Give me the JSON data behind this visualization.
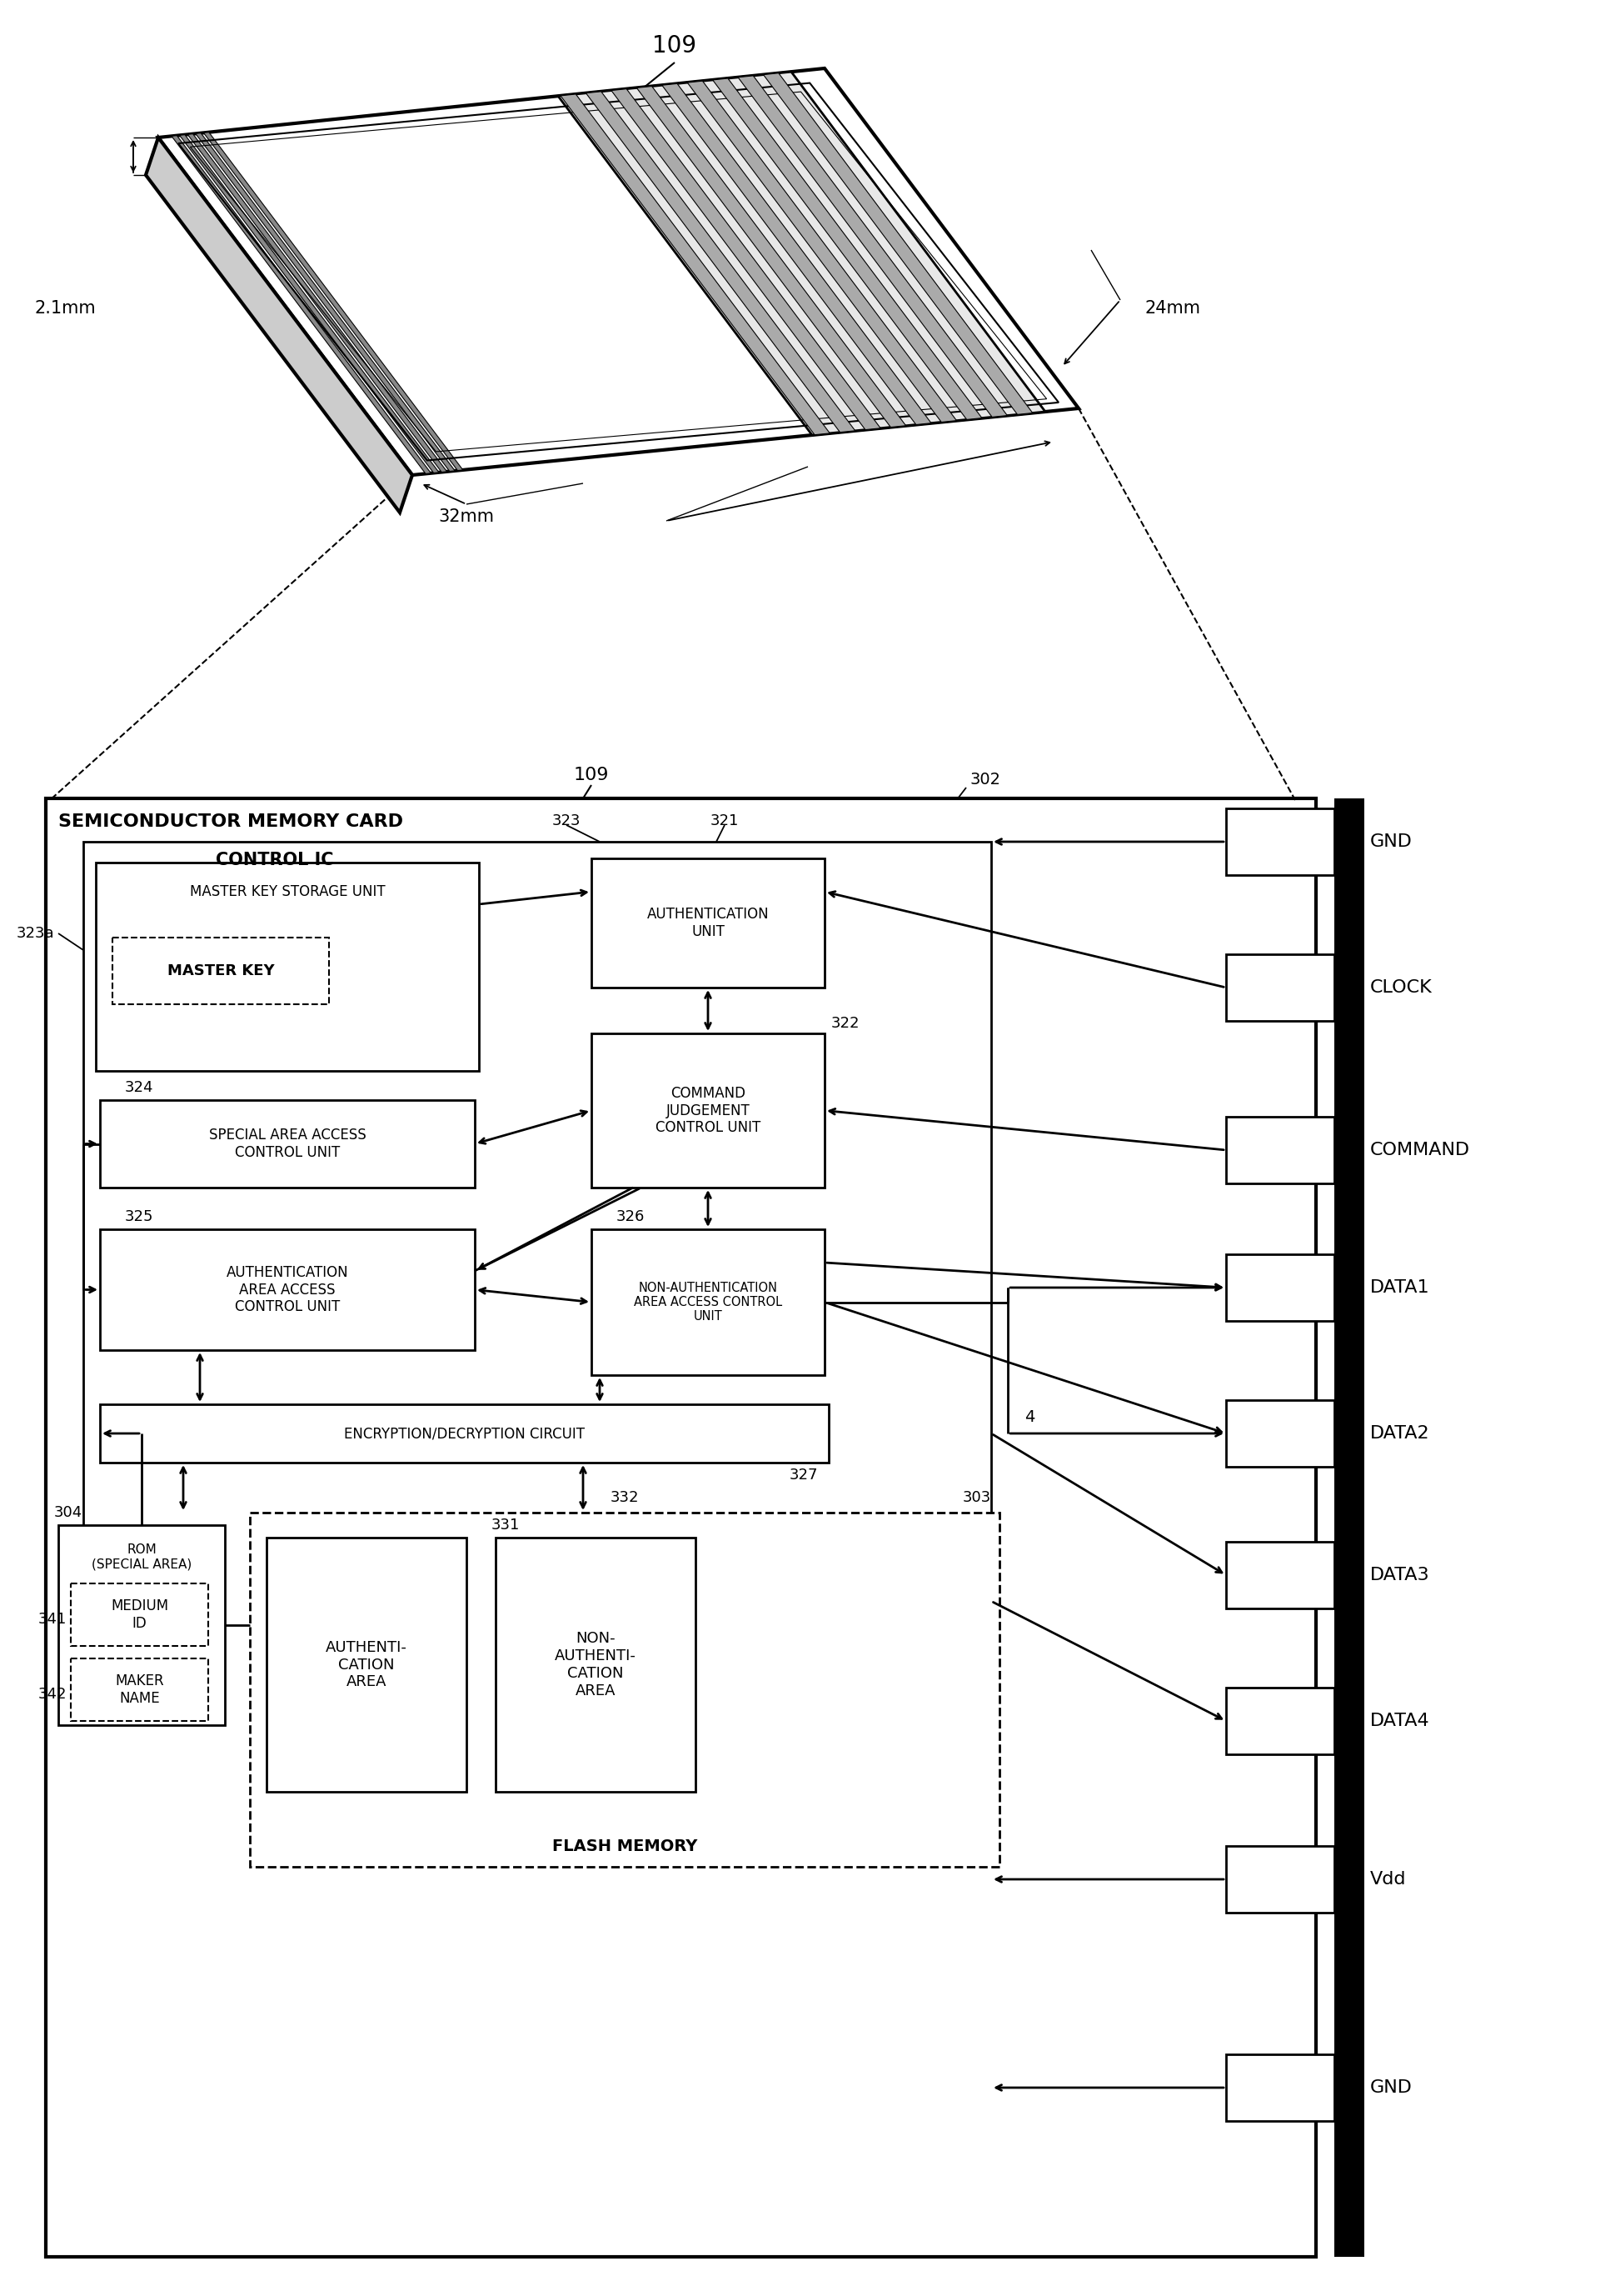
{
  "bg_color": "#ffffff",
  "card_label": "109",
  "dim_21mm": "2.1mm",
  "dim_24mm": "24mm",
  "dim_32mm": "32mm",
  "ref302": "302",
  "ref323": "323",
  "ref321": "321",
  "ref322": "322",
  "ref323a": "323a",
  "ref324": "324",
  "ref325": "325",
  "ref326": "326",
  "ref327": "327",
  "ref332": "332",
  "ref303": "303",
  "ref304": "304",
  "ref331": "331",
  "ref341": "341",
  "ref342": "342",
  "ref4": "4",
  "ref109b": "109",
  "semiconductor_label": "SEMICONDUCTOR MEMORY CARD",
  "control_ic_label": "CONTROL IC",
  "box_master_key_storage": "MASTER KEY STORAGE UNIT",
  "box_master_key": "MASTER KEY",
  "box_auth_unit": "AUTHENTICATION\nUNIT",
  "box_command_judgement": "COMMAND\nJUDGEMENT\nCONTROL UNIT",
  "box_special_area": "SPECIAL AREA ACCESS\nCONTROL UNIT",
  "box_auth_area": "AUTHENTICATION\nAREA ACCESS\nCONTROL UNIT",
  "box_non_auth": "NON-AUTHENTICATION\nAREA ACCESS CONTROL\nUNIT",
  "box_encryption": "ENCRYPTION/DECRYPTION CIRCUIT",
  "box_rom": "ROM\n(SPECIAL AREA)",
  "box_medium_id": "MEDIUM\nID",
  "box_maker_name": "MAKER\nNAME",
  "box_flash": "FLASH MEMORY",
  "box_auth_area_flash": "AUTHENTI-\nCATION\nAREA",
  "box_non_auth_flash": "NON-\nAUTHENTI-\nCATION\nAREA",
  "pins": [
    "GND",
    "CLOCK",
    "COMMAND",
    "DATA1",
    "DATA2",
    "DATA3",
    "DATA4",
    "Vdd",
    "GND"
  ]
}
